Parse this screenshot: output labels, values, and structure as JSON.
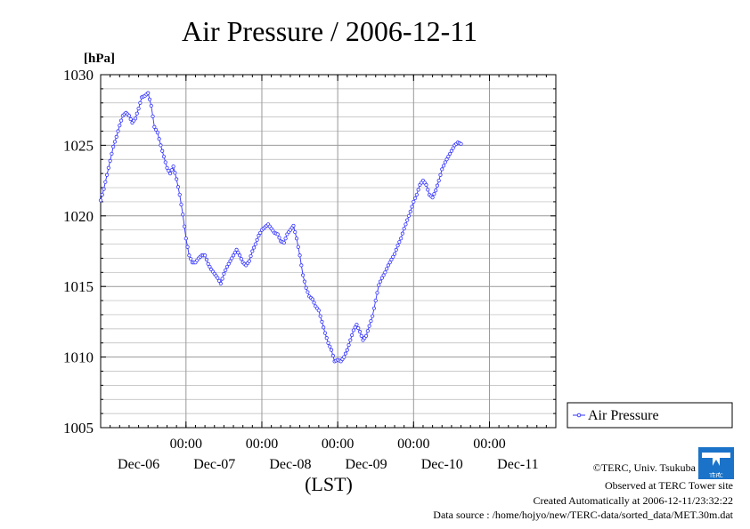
{
  "chart_data": {
    "type": "line",
    "title": "Air Pressure / 2006-12-11",
    "ylabel": "[hPa]",
    "xlabel": "(LST)",
    "ylim": [
      1005,
      1030
    ],
    "yticks": [
      1005,
      1010,
      1015,
      1020,
      1025,
      1030
    ],
    "x_unit": "hour offset from 2006-12-05 21:00 LST",
    "xlim": [
      0,
      144
    ],
    "xticks": [
      {
        "x": 27,
        "time": "00:00",
        "date": "Dec-06"
      },
      {
        "x": 51,
        "time": "00:00",
        "date": "Dec-07"
      },
      {
        "x": 75,
        "time": "00:00",
        "date": "Dec-08"
      },
      {
        "x": 99,
        "time": "00:00",
        "date": "Dec-09"
      },
      {
        "x": 123,
        "time": "00:00",
        "date": "Dec-10"
      }
    ],
    "date_labels": [
      {
        "x": 12,
        "label": "Dec-06"
      },
      {
        "x": 36,
        "label": "Dec-07"
      },
      {
        "x": 60,
        "label": "Dec-08"
      },
      {
        "x": 84,
        "label": "Dec-09"
      },
      {
        "x": 108,
        "label": "Dec-10"
      },
      {
        "x": 132,
        "label": "Dec-11"
      }
    ],
    "grid": true,
    "legend": {
      "position": "right",
      "entries": [
        "Air Pressure"
      ]
    },
    "series": [
      {
        "name": "Air Pressure",
        "color": "#3333ff",
        "marker": "open-circle",
        "points": [
          [
            0,
            1021.1
          ],
          [
            1,
            1021.9
          ],
          [
            2,
            1022.9
          ],
          [
            3,
            1023.9
          ],
          [
            4,
            1024.9
          ],
          [
            5,
            1025.6
          ],
          [
            6,
            1026.4
          ],
          [
            7,
            1027.1
          ],
          [
            8,
            1027.3
          ],
          [
            9,
            1027.1
          ],
          [
            10,
            1026.6
          ],
          [
            11,
            1026.9
          ],
          [
            12,
            1027.6
          ],
          [
            13,
            1028.4
          ],
          [
            14,
            1028.5
          ],
          [
            15,
            1028.7
          ],
          [
            16,
            1027.8
          ],
          [
            17,
            1026.3
          ],
          [
            18,
            1025.9
          ],
          [
            19,
            1025.0
          ],
          [
            20,
            1024.2
          ],
          [
            21,
            1023.4
          ],
          [
            22,
            1023.0
          ],
          [
            23,
            1023.5
          ],
          [
            24,
            1022.6
          ],
          [
            25,
            1021.5
          ],
          [
            26,
            1020.1
          ],
          [
            27,
            1018.4
          ],
          [
            28,
            1017.2
          ],
          [
            29,
            1016.7
          ],
          [
            30,
            1016.7
          ],
          [
            31,
            1017.0
          ],
          [
            32,
            1017.2
          ],
          [
            33,
            1017.2
          ],
          [
            34,
            1016.6
          ],
          [
            35,
            1016.2
          ],
          [
            36,
            1015.9
          ],
          [
            37,
            1015.6
          ],
          [
            38,
            1015.2
          ],
          [
            39,
            1015.9
          ],
          [
            40,
            1016.4
          ],
          [
            41,
            1016.8
          ],
          [
            42,
            1017.2
          ],
          [
            43,
            1017.6
          ],
          [
            44,
            1017.2
          ],
          [
            45,
            1016.7
          ],
          [
            46,
            1016.5
          ],
          [
            47,
            1016.8
          ],
          [
            48,
            1017.5
          ],
          [
            49,
            1018.0
          ],
          [
            50,
            1018.6
          ],
          [
            51,
            1019.0
          ],
          [
            52,
            1019.2
          ],
          [
            53,
            1019.4
          ],
          [
            54,
            1019.1
          ],
          [
            55,
            1018.8
          ],
          [
            56,
            1018.7
          ],
          [
            57,
            1018.2
          ],
          [
            58,
            1018.1
          ],
          [
            59,
            1018.7
          ],
          [
            60,
            1019.0
          ],
          [
            61,
            1019.3
          ],
          [
            62,
            1018.4
          ],
          [
            63,
            1017.2
          ],
          [
            64,
            1015.8
          ],
          [
            65,
            1014.9
          ],
          [
            66,
            1014.3
          ],
          [
            67,
            1014.1
          ],
          [
            68,
            1013.6
          ],
          [
            69,
            1013.3
          ],
          [
            70,
            1012.5
          ],
          [
            71,
            1011.7
          ],
          [
            72,
            1011.0
          ],
          [
            73,
            1010.5
          ],
          [
            74,
            1009.7
          ],
          [
            75,
            1009.8
          ],
          [
            76,
            1009.7
          ],
          [
            77,
            1010.0
          ],
          [
            78,
            1010.5
          ],
          [
            79,
            1011.2
          ],
          [
            80,
            1011.9
          ],
          [
            81,
            1012.3
          ],
          [
            82,
            1011.8
          ],
          [
            83,
            1011.2
          ],
          [
            84,
            1011.5
          ],
          [
            85,
            1012.2
          ],
          [
            86,
            1012.9
          ],
          [
            87,
            1014.0
          ],
          [
            88,
            1015.1
          ],
          [
            89,
            1015.6
          ],
          [
            90,
            1016.0
          ],
          [
            91,
            1016.5
          ],
          [
            92,
            1016.9
          ],
          [
            93,
            1017.3
          ],
          [
            94,
            1017.9
          ],
          [
            95,
            1018.4
          ],
          [
            96,
            1019.1
          ],
          [
            97,
            1019.7
          ],
          [
            98,
            1020.3
          ],
          [
            99,
            1021.0
          ],
          [
            100,
            1021.5
          ],
          [
            101,
            1022.2
          ],
          [
            102,
            1022.5
          ],
          [
            103,
            1022.2
          ],
          [
            104,
            1021.5
          ],
          [
            105,
            1021.3
          ],
          [
            106,
            1021.8
          ],
          [
            107,
            1022.5
          ],
          [
            108,
            1023.3
          ],
          [
            109,
            1023.8
          ],
          [
            110,
            1024.2
          ],
          [
            111,
            1024.6
          ],
          [
            112,
            1025.0
          ],
          [
            113,
            1025.2
          ],
          [
            114,
            1025.1
          ]
        ]
      }
    ]
  },
  "footer": {
    "copyright": "©TERC, Univ. Tsukuba",
    "observed": "Observed at TERC Tower site",
    "created": "Created Automatically at 2006-12-11/23:32:22",
    "source": "Data source : /home/hojyo/new/TERC-data/sorted_data/MET.30m.dat"
  },
  "logo": {
    "text": "TERC",
    "color": "#1a73c8"
  }
}
